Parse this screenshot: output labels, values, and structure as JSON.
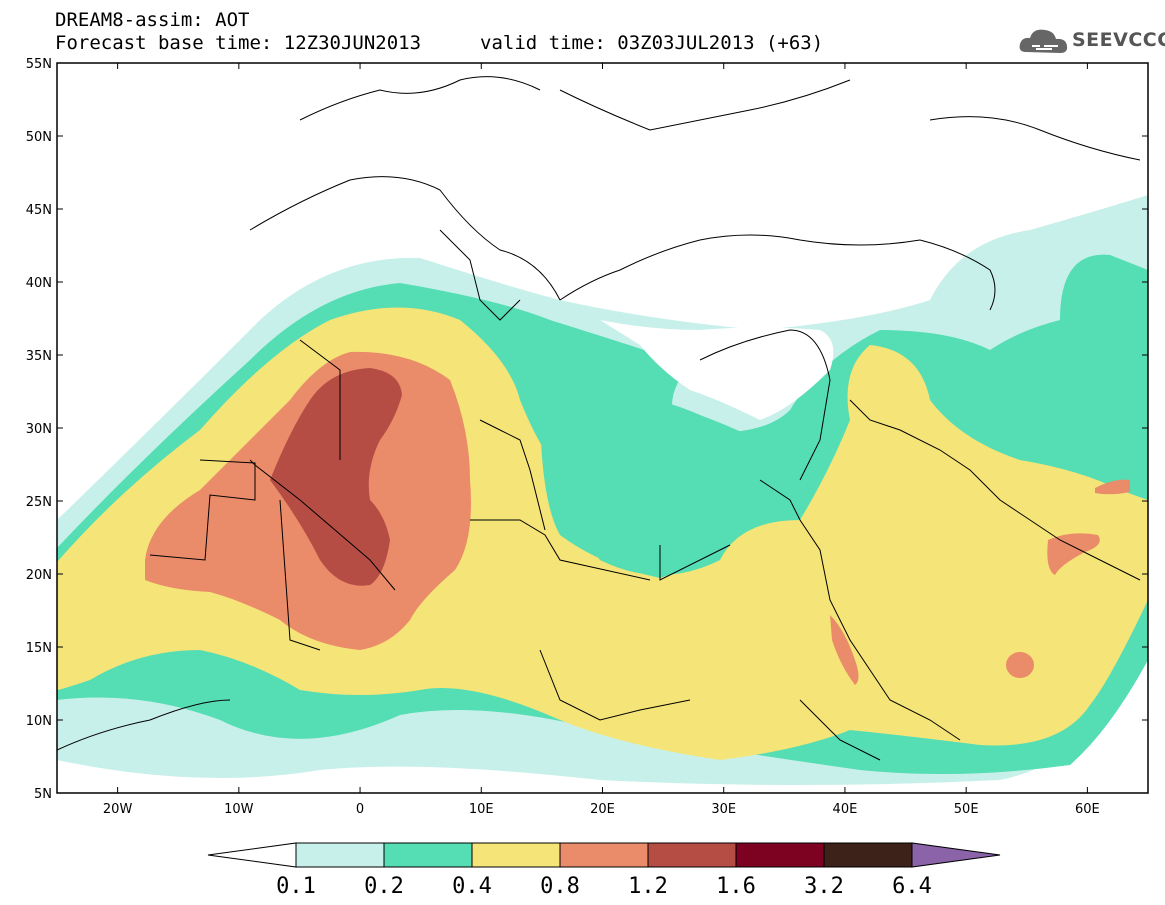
{
  "header": {
    "line1": "DREAM8-assim: AOT",
    "line2": "Forecast base time: 12Z30JUN2013",
    "line2b": "valid time: 03Z03JUL2013 (+63)"
  },
  "logo": {
    "text": "SEEVCCC",
    "icon": "cloud-icon"
  },
  "map": {
    "lat_labels": [
      "55N",
      "50N",
      "45N",
      "40N",
      "35N",
      "30N",
      "25N",
      "20N",
      "15N",
      "10N",
      "5N"
    ],
    "lon_labels": [
      "20W",
      "10W",
      "0",
      "10E",
      "20E",
      "30E",
      "40E",
      "50E",
      "60E"
    ],
    "lat_range": [
      5,
      55
    ],
    "lon_range": [
      -25,
      65
    ]
  },
  "colorbar": {
    "labels": [
      "0.1",
      "0.2",
      "0.4",
      "0.8",
      "1.2",
      "1.6",
      "3.2",
      "6.4"
    ],
    "colors": [
      "#ffffff",
      "#c8f0ea",
      "#55ddb4",
      "#f5e477",
      "#ea8b69",
      "#b64d44",
      "#7d0222",
      "#3c2218",
      "#8b63a8"
    ]
  },
  "legend_colors": {
    "lowest": "#c8f0ea",
    "low": "#55ddb4",
    "mid": "#f5e477",
    "high": "#ea8b69",
    "higher": "#b64d44"
  }
}
